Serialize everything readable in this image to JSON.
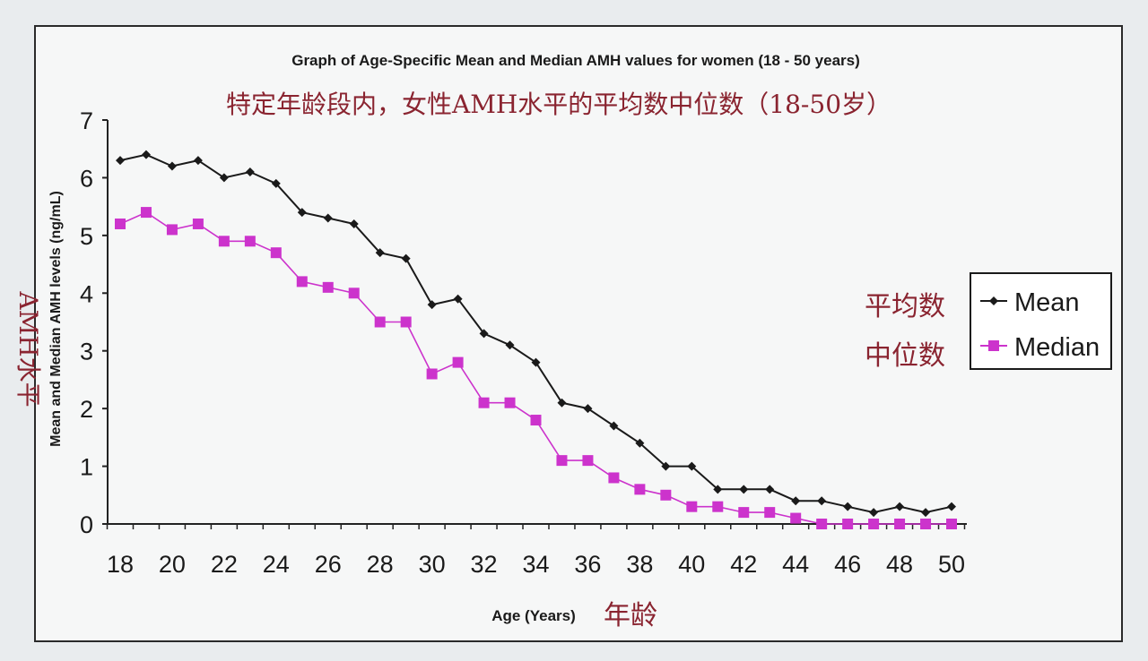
{
  "chart_data": {
    "type": "line",
    "title": "Graph of Age-Specific Mean and Median AMH values for women (18 - 50 years)",
    "subtitle": "特定年龄段内，女性AMH水平的平均数中位数（18-50岁）",
    "xlabel": "Age (Years)",
    "xlabel_cn": "年龄",
    "ylabel": "Mean and Median AMH levels (ng/mL)",
    "ylabel_cn": "AMH水平",
    "xlim": [
      18,
      50
    ],
    "ylim": [
      0,
      7
    ],
    "x_ticks": [
      "18",
      "20",
      "22",
      "24",
      "26",
      "28",
      "30",
      "32",
      "34",
      "36",
      "38",
      "40",
      "42",
      "44",
      "46",
      "48",
      "50"
    ],
    "y_ticks": [
      "0",
      "1",
      "2",
      "3",
      "4",
      "5",
      "6",
      "7"
    ],
    "grid": false,
    "legend_position": "right",
    "legend_cn": [
      "平均数",
      "中位数"
    ],
    "x": [
      18,
      19,
      20,
      21,
      22,
      23,
      24,
      25,
      26,
      27,
      28,
      29,
      30,
      31,
      32,
      33,
      34,
      35,
      36,
      37,
      38,
      39,
      40,
      41,
      42,
      43,
      44,
      45,
      46,
      47,
      48,
      49,
      50
    ],
    "series": [
      {
        "name": "Mean",
        "color": "#1a1a1a",
        "marker": "diamond",
        "values": [
          6.3,
          6.4,
          6.2,
          6.3,
          6.0,
          6.1,
          5.9,
          5.4,
          5.3,
          5.2,
          4.7,
          4.6,
          3.8,
          3.9,
          3.3,
          3.1,
          2.8,
          2.1,
          2.0,
          1.7,
          1.4,
          1.0,
          1.0,
          0.6,
          0.6,
          0.6,
          0.4,
          0.4,
          0.3,
          0.2,
          0.3,
          0.2,
          0.3
        ]
      },
      {
        "name": "Median",
        "color": "#cc33cc",
        "marker": "square",
        "values": [
          5.2,
          5.4,
          5.1,
          5.2,
          4.9,
          4.9,
          4.7,
          4.2,
          4.1,
          4.0,
          3.5,
          3.5,
          2.6,
          2.8,
          2.1,
          2.1,
          1.8,
          1.1,
          1.1,
          0.8,
          0.6,
          0.5,
          0.3,
          0.3,
          0.2,
          0.2,
          0.1,
          0.0,
          0.0,
          0.0,
          0.0,
          0.0,
          0.0
        ]
      }
    ]
  }
}
